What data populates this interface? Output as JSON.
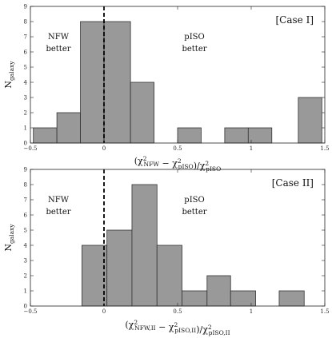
{
  "chart_data": [
    {
      "type": "bar",
      "panel": "Case I",
      "annotation": "[Case I]",
      "left_label_lines": [
        "NFW",
        "better"
      ],
      "right_label_lines": [
        "pISO",
        "better"
      ],
      "ylabel_main": "N",
      "ylabel_sub": "galaxy",
      "xlabel_prefix": "(χ",
      "xlabel_parts": [
        {
          "text": "(χ"
        },
        {
          "sup": "2",
          "sub": "NFW"
        },
        {
          "text": " − χ"
        },
        {
          "sup": "2",
          "sub": "pISO"
        },
        {
          "text": ")/χ"
        },
        {
          "sup": "2",
          "sub": "pISO"
        }
      ],
      "xlim": [
        -0.5,
        1.5
      ],
      "ylim": [
        0,
        9
      ],
      "xticks": [
        -0.5,
        0,
        0.5,
        1,
        1.5
      ],
      "xtick_labels": [
        "−0.5",
        "0",
        "0.5",
        "1",
        "1.5"
      ],
      "yticks": [
        0,
        1,
        2,
        3,
        4,
        5,
        6,
        7,
        8,
        9
      ],
      "reference_x": 0,
      "bins": [
        {
          "x0": -0.48,
          "x1": -0.32,
          "count": 1
        },
        {
          "x0": -0.32,
          "x1": -0.16,
          "count": 2
        },
        {
          "x0": -0.16,
          "x1": 0.0,
          "count": 8
        },
        {
          "x0": 0.0,
          "x1": 0.18,
          "count": 8
        },
        {
          "x0": 0.18,
          "x1": 0.34,
          "count": 4
        },
        {
          "x0": 0.5,
          "x1": 0.66,
          "count": 1
        },
        {
          "x0": 0.82,
          "x1": 0.98,
          "count": 1
        },
        {
          "x0": 0.98,
          "x1": 1.14,
          "count": 1
        },
        {
          "x0": 1.32,
          "x1": 1.48,
          "count": 3
        }
      ]
    },
    {
      "type": "bar",
      "panel": "Case II",
      "annotation": "[Case II]",
      "left_label_lines": [
        "NFW",
        "better"
      ],
      "right_label_lines": [
        "pISO",
        "better"
      ],
      "ylabel_main": "N",
      "ylabel_sub": "galaxy",
      "xlabel_parts": [
        {
          "text": "(χ"
        },
        {
          "sup": "2",
          "sub": "NFW,II"
        },
        {
          "text": " − χ"
        },
        {
          "sup": "2",
          "sub": "pISO,II"
        },
        {
          "text": ")/χ"
        },
        {
          "sup": "2",
          "sub": "pISO,II"
        }
      ],
      "xlim": [
        -0.5,
        1.5
      ],
      "ylim": [
        0,
        9
      ],
      "xticks": [
        -0.5,
        0,
        0.5,
        1,
        1.5
      ],
      "xtick_labels": [
        "−0.5",
        "0",
        "0.5",
        "1",
        "1.5"
      ],
      "yticks": [
        0,
        1,
        2,
        3,
        4,
        5,
        6,
        7,
        8,
        9
      ],
      "reference_x": 0,
      "bins": [
        {
          "x0": -0.15,
          "x1": 0.02,
          "count": 4
        },
        {
          "x0": 0.02,
          "x1": 0.19,
          "count": 5
        },
        {
          "x0": 0.19,
          "x1": 0.36,
          "count": 8
        },
        {
          "x0": 0.36,
          "x1": 0.53,
          "count": 4
        },
        {
          "x0": 0.53,
          "x1": 0.7,
          "count": 1
        },
        {
          "x0": 0.7,
          "x1": 0.86,
          "count": 2
        },
        {
          "x0": 0.86,
          "x1": 1.03,
          "count": 1
        },
        {
          "x0": 1.19,
          "x1": 1.36,
          "count": 1
        }
      ]
    }
  ]
}
